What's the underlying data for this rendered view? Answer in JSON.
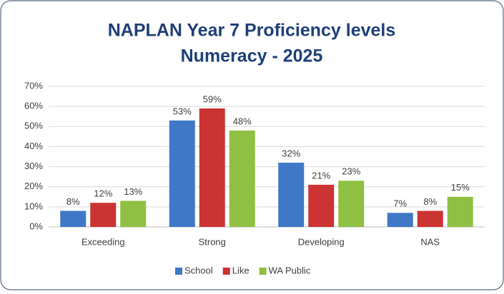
{
  "chart_data": {
    "type": "bar",
    "title": [
      "NAPLAN Year 7 Proficiency levels",
      "Numeracy - 2025"
    ],
    "categories": [
      "Exceeding",
      "Strong",
      "Developing",
      "NAS"
    ],
    "series": [
      {
        "name": "School",
        "color": "#3f78c6",
        "values": [
          8,
          53,
          32,
          7
        ],
        "value_labels": [
          "8%",
          "53%",
          "32%",
          "7%"
        ]
      },
      {
        "name": "Like",
        "color": "#cc3333",
        "values": [
          12,
          59,
          21,
          8
        ],
        "value_labels": [
          "12%",
          "59%",
          "21%",
          "8%"
        ]
      },
      {
        "name": "WA Public",
        "color": "#8fc043",
        "values": [
          13,
          48,
          23,
          15
        ],
        "value_labels": [
          "13%",
          "48%",
          "23%",
          "15%"
        ]
      }
    ],
    "ylim": [
      0,
      70
    ],
    "yticks": [
      {
        "value": 0,
        "label": "0%"
      },
      {
        "value": 10,
        "label": "10%"
      },
      {
        "value": 20,
        "label": "20%"
      },
      {
        "value": 30,
        "label": "30%"
      },
      {
        "value": 40,
        "label": "40%"
      },
      {
        "value": 50,
        "label": "50%"
      },
      {
        "value": 60,
        "label": "60%"
      },
      {
        "value": 70,
        "label": "70%"
      }
    ],
    "grid": true,
    "legend": "bottom"
  }
}
